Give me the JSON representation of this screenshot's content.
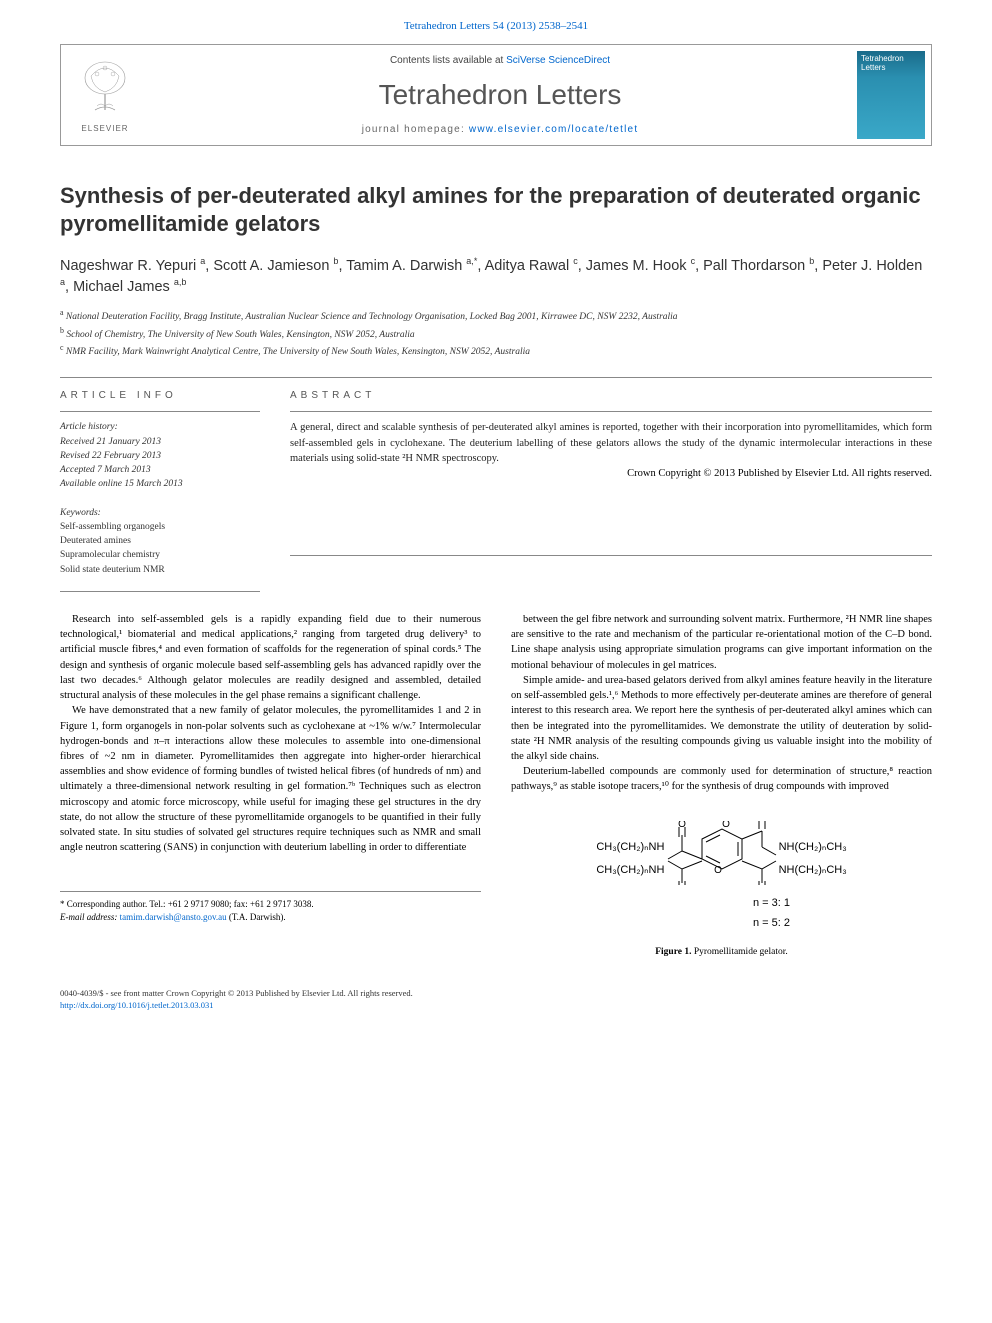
{
  "top_citation": "Tetrahedron Letters 54 (2013) 2538–2541",
  "banner": {
    "contents_prefix": "Contents lists available at ",
    "contents_link": "SciVerse ScienceDirect",
    "journal": "Tetrahedron Letters",
    "homepage_prefix": "journal homepage: ",
    "homepage_url": "www.elsevier.com/locate/tetlet",
    "publisher_logo": "ELSEVIER",
    "cover_label": "Tetrahedron Letters"
  },
  "title": "Synthesis of per-deuterated alkyl amines for the preparation of deuterated organic pyromellitamide gelators",
  "authors_html": "Nageshwar R. Yepuri <sup>a</sup>, Scott A. Jamieson <sup>b</sup>, Tamim A. Darwish <sup>a,*</sup>, Aditya Rawal <sup>c</sup>, James M. Hook <sup>c</sup>, Pall Thordarson <sup>b</sup>, Peter J. Holden <sup>a</sup>, Michael James <sup>a,b</sup>",
  "affiliations": [
    {
      "sup": "a",
      "text": "National Deuteration Facility, Bragg Institute, Australian Nuclear Science and Technology Organisation, Locked Bag 2001, Kirrawee DC, NSW 2232, Australia"
    },
    {
      "sup": "b",
      "text": "School of Chemistry, The University of New South Wales, Kensington, NSW 2052, Australia"
    },
    {
      "sup": "c",
      "text": "NMR Facility, Mark Wainwright Analytical Centre, The University of New South Wales, Kensington, NSW 2052, Australia"
    }
  ],
  "article_info_head": "ARTICLE INFO",
  "abstract_head": "ABSTRACT",
  "history": {
    "label": "Article history:",
    "received": "Received 21 January 2013",
    "revised": "Revised 22 February 2013",
    "accepted": "Accepted 7 March 2013",
    "online": "Available online 15 March 2013"
  },
  "keywords": {
    "label": "Keywords:",
    "items": [
      "Self-assembling organogels",
      "Deuterated amines",
      "Supramolecular chemistry",
      "Solid state deuterium NMR"
    ]
  },
  "abstract": "A general, direct and scalable synthesis of per-deuterated alkyl amines is reported, together with their incorporation into pyromellitamides, which form self-assembled gels in cyclohexane. The deuterium labelling of these gelators allows the study of the dynamic intermolecular interactions in these materials using solid-state ²H NMR spectroscopy.",
  "abstract_copyright": "Crown Copyright © 2013 Published by Elsevier Ltd. All rights reserved.",
  "body": {
    "left": [
      "Research into self-assembled gels is a rapidly expanding field due to their numerous technological,¹ biomaterial and medical applications,² ranging from targeted drug delivery³ to artificial muscle fibres,⁴ and even formation of scaffolds for the regeneration of spinal cords.⁵ The design and synthesis of organic molecule based self-assembling gels has advanced rapidly over the last two decades.⁶ Although gelator molecules are readily designed and assembled, detailed structural analysis of these molecules in the gel phase remains a significant challenge.",
      "We have demonstrated that a new family of gelator molecules, the pyromellitamides 1 and 2 in Figure 1, form organogels in non-polar solvents such as cyclohexane at ~1% w/w.⁷ Intermolecular hydrogen-bonds and π–π interactions allow these molecules to assemble into one-dimensional fibres of ~2 nm in diameter. Pyromellitamides then aggregate into higher-order hierarchical assemblies and show evidence of forming bundles of twisted helical fibres (of hundreds of nm) and ultimately a three-dimensional network resulting in gel formation.⁷ᵇ Techniques such as electron microscopy and atomic force microscopy, while useful for imaging these gel structures in the dry state, do not allow the structure of these pyromellitamide organogels to be quantified in their fully solvated state. In situ studies of solvated gel structures require techniques such as NMR and small angle neutron scattering (SANS) in conjunction with deuterium labelling in order to differentiate"
    ],
    "right": [
      "between the gel fibre network and surrounding solvent matrix. Furthermore, ²H NMR line shapes are sensitive to the rate and mechanism of the particular re-orientational motion of the C–D bond. Line shape analysis using appropriate simulation programs can give important information on the motional behaviour of molecules in gel matrices.",
      "Simple amide- and urea-based gelators derived from alkyl amines feature heavily in the literature on self-assembled gels.¹,⁶ Methods to more effectively per-deuterate amines are therefore of general interest to this research area. We report here the synthesis of per-deuterated alkyl amines which can then be integrated into the pyromellitamides. We demonstrate the utility of deuteration by solid-state ²H NMR analysis of the resulting compounds giving us valuable insight into the mobility of the alkyl side chains.",
      "Deuterium-labelled compounds are commonly used for determination of structure,⁸ reaction pathways,⁹ as stable isotope tracers,¹⁰ for the synthesis of drug compounds with improved"
    ]
  },
  "figure": {
    "line1_left": "CH₃(CH₂)ₙNH",
    "line1_right": "NH(CH₂)ₙCH₃",
    "line2_left": "CH₃(CH₂)ₙNH",
    "line2_right": "NH(CH₂)ₙCH₃",
    "cond1": "n = 3: 1",
    "cond2": "n = 5: 2",
    "caption_label": "Figure 1.",
    "caption_text": "Pyromellitamide gelator."
  },
  "footnote": {
    "corr": "* Corresponding author. Tel.: +61 2 9717 9080; fax: +61 2 9717 3038.",
    "email_label": "E-mail address:",
    "email": "tamim.darwish@ansto.gov.au",
    "email_suffix": "(T.A. Darwish)."
  },
  "bottom": {
    "issn": "0040-4039/$ - see front matter Crown Copyright © 2013 Published by Elsevier Ltd. All rights reserved.",
    "doi": "http://dx.doi.org/10.1016/j.tetlet.2013.03.031"
  },
  "colors": {
    "link": "#0066cc",
    "rule": "#888888",
    "cover_grad_top": "#1a6b8a",
    "cover_grad_bot": "#3aa8c8"
  }
}
